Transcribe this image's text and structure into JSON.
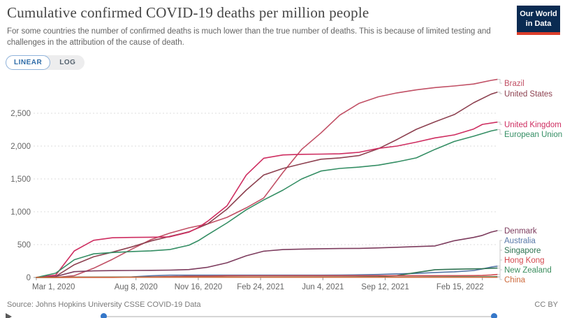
{
  "header": {
    "title": "Cumulative confirmed COVID-19 deaths per million people",
    "subtitle": "For some countries the number of confirmed deaths is much lower than the true number of deaths. This is because of limited testing and challenges in the attribution of the cause of death.",
    "logo_line1": "Our World",
    "logo_line2": "in Data"
  },
  "toolbar": {
    "linear_label": "LINEAR",
    "log_label": "LOG"
  },
  "footer": {
    "source": "Source: Johns Hopkins University CSSE COVID-19 Data",
    "license": "CC BY"
  },
  "colors": {
    "brand_navy": "#0A2B52",
    "brand_red": "#DC3E2B",
    "accent_blue": "#3577C9",
    "grid": "#DDDDDD",
    "axis": "#999999",
    "tick_text": "#666666",
    "connector": "#C9C9C9"
  },
  "chart_data": {
    "type": "line",
    "title": "Cumulative confirmed COVID-19 deaths per million people",
    "xlabel": "",
    "ylabel": "",
    "grid": "dashed-horizontal",
    "legend_position": "right-of-line-ends",
    "x_axis": {
      "unit": "date",
      "domain_days_from_mar1_2020": [
        0,
        740
      ],
      "ticks": [
        {
          "label": "Mar 1, 2020",
          "day": 0
        },
        {
          "label": "Aug 8, 2020",
          "day": 160
        },
        {
          "label": "Nov 16, 2020",
          "day": 260
        },
        {
          "label": "Feb 24, 2021",
          "day": 360
        },
        {
          "label": "Jun 4, 2021",
          "day": 460
        },
        {
          "label": "Sep 12, 2021",
          "day": 560
        },
        {
          "label": "Feb 15, 2022",
          "day": 716
        }
      ]
    },
    "y_axis": {
      "ylim": [
        0,
        3100
      ],
      "ticks": [
        {
          "v": 0,
          "label": "0"
        },
        {
          "v": 500,
          "label": "500"
        },
        {
          "v": 1000,
          "label": "1,000"
        },
        {
          "v": 1500,
          "label": "1,500"
        },
        {
          "v": 2000,
          "label": "2,000"
        },
        {
          "v": 2500,
          "label": "2,500"
        }
      ]
    },
    "series": [
      {
        "name": "Brazil",
        "color": "#C15065",
        "label_y": 22,
        "points": [
          [
            0,
            0
          ],
          [
            31,
            1
          ],
          [
            61,
            28
          ],
          [
            92,
            140
          ],
          [
            122,
            275
          ],
          [
            153,
            430
          ],
          [
            184,
            575
          ],
          [
            214,
            675
          ],
          [
            245,
            755
          ],
          [
            275,
            815
          ],
          [
            306,
            915
          ],
          [
            337,
            1060
          ],
          [
            365,
            1210
          ],
          [
            396,
            1600
          ],
          [
            426,
            1950
          ],
          [
            457,
            2200
          ],
          [
            487,
            2470
          ],
          [
            518,
            2650
          ],
          [
            549,
            2750
          ],
          [
            579,
            2810
          ],
          [
            610,
            2855
          ],
          [
            640,
            2890
          ],
          [
            671,
            2915
          ],
          [
            702,
            2945
          ],
          [
            730,
            3000
          ],
          [
            740,
            3015
          ]
        ]
      },
      {
        "name": "United States",
        "color": "#8D4150",
        "label_y": 37,
        "points": [
          [
            0,
            1
          ],
          [
            31,
            16
          ],
          [
            61,
            195
          ],
          [
            92,
            315
          ],
          [
            122,
            385
          ],
          [
            153,
            465
          ],
          [
            184,
            555
          ],
          [
            214,
            625
          ],
          [
            245,
            695
          ],
          [
            275,
            815
          ],
          [
            306,
            1040
          ],
          [
            337,
            1330
          ],
          [
            365,
            1560
          ],
          [
            396,
            1660
          ],
          [
            426,
            1730
          ],
          [
            457,
            1800
          ],
          [
            487,
            1820
          ],
          [
            518,
            1855
          ],
          [
            549,
            1960
          ],
          [
            579,
            2100
          ],
          [
            610,
            2255
          ],
          [
            640,
            2370
          ],
          [
            671,
            2480
          ],
          [
            702,
            2660
          ],
          [
            730,
            2790
          ],
          [
            740,
            2820
          ]
        ]
      },
      {
        "name": "United Kingdom",
        "color": "#CE2D60",
        "label_y": 81,
        "points": [
          [
            0,
            2
          ],
          [
            31,
            35
          ],
          [
            61,
            404
          ],
          [
            92,
            566
          ],
          [
            122,
            604
          ],
          [
            153,
            610
          ],
          [
            184,
            613
          ],
          [
            214,
            618
          ],
          [
            245,
            690
          ],
          [
            260,
            760
          ],
          [
            275,
            855
          ],
          [
            306,
            1090
          ],
          [
            337,
            1560
          ],
          [
            365,
            1815
          ],
          [
            396,
            1865
          ],
          [
            426,
            1875
          ],
          [
            457,
            1878
          ],
          [
            487,
            1882
          ],
          [
            518,
            1905
          ],
          [
            549,
            1965
          ],
          [
            579,
            2000
          ],
          [
            610,
            2060
          ],
          [
            640,
            2125
          ],
          [
            671,
            2170
          ],
          [
            702,
            2260
          ],
          [
            716,
            2330
          ],
          [
            740,
            2365
          ]
        ]
      },
      {
        "name": "European Union",
        "color": "#348E64",
        "label_y": 95,
        "points": [
          [
            0,
            0
          ],
          [
            31,
            65
          ],
          [
            61,
            270
          ],
          [
            92,
            360
          ],
          [
            122,
            380
          ],
          [
            153,
            395
          ],
          [
            184,
            405
          ],
          [
            214,
            425
          ],
          [
            245,
            490
          ],
          [
            260,
            560
          ],
          [
            275,
            650
          ],
          [
            306,
            830
          ],
          [
            337,
            1030
          ],
          [
            365,
            1180
          ],
          [
            396,
            1330
          ],
          [
            426,
            1500
          ],
          [
            457,
            1620
          ],
          [
            487,
            1660
          ],
          [
            518,
            1680
          ],
          [
            549,
            1710
          ],
          [
            579,
            1760
          ],
          [
            610,
            1820
          ],
          [
            640,
            1950
          ],
          [
            671,
            2070
          ],
          [
            702,
            2150
          ],
          [
            730,
            2230
          ],
          [
            740,
            2250
          ]
        ]
      },
      {
        "name": "Denmark",
        "color": "#7D3C5E",
        "label_y": 233,
        "points": [
          [
            0,
            0
          ],
          [
            31,
            15
          ],
          [
            61,
            88
          ],
          [
            92,
            100
          ],
          [
            122,
            104
          ],
          [
            153,
            106
          ],
          [
            184,
            108
          ],
          [
            214,
            112
          ],
          [
            245,
            120
          ],
          [
            275,
            155
          ],
          [
            306,
            223
          ],
          [
            337,
            330
          ],
          [
            365,
            400
          ],
          [
            396,
            425
          ],
          [
            426,
            432
          ],
          [
            457,
            437
          ],
          [
            487,
            440
          ],
          [
            518,
            443
          ],
          [
            549,
            450
          ],
          [
            579,
            460
          ],
          [
            610,
            470
          ],
          [
            640,
            480
          ],
          [
            671,
            560
          ],
          [
            702,
            610
          ],
          [
            716,
            640
          ],
          [
            730,
            690
          ],
          [
            740,
            713
          ]
        ]
      },
      {
        "name": "Australia",
        "color": "#5878A8",
        "label_y": 247,
        "points": [
          [
            0,
            0
          ],
          [
            31,
            1
          ],
          [
            61,
            4
          ],
          [
            92,
            4
          ],
          [
            122,
            4
          ],
          [
            153,
            8
          ],
          [
            184,
            26
          ],
          [
            214,
            35
          ],
          [
            245,
            35
          ],
          [
            275,
            35
          ],
          [
            306,
            35
          ],
          [
            337,
            35
          ],
          [
            365,
            35
          ],
          [
            396,
            35
          ],
          [
            426,
            35
          ],
          [
            457,
            35
          ],
          [
            487,
            36
          ],
          [
            518,
            40
          ],
          [
            549,
            46
          ],
          [
            579,
            55
          ],
          [
            610,
            62
          ],
          [
            640,
            75
          ],
          [
            671,
            86
          ],
          [
            702,
            105
          ],
          [
            716,
            130
          ],
          [
            730,
            158
          ],
          [
            740,
            172
          ]
        ]
      },
      {
        "name": "Singapore",
        "color": "#2F7352",
        "label_y": 261,
        "points": [
          [
            0,
            0
          ],
          [
            61,
            3
          ],
          [
            122,
            4
          ],
          [
            184,
            5
          ],
          [
            245,
            5
          ],
          [
            306,
            5
          ],
          [
            365,
            5
          ],
          [
            426,
            6
          ],
          [
            487,
            7
          ],
          [
            518,
            10
          ],
          [
            549,
            13
          ],
          [
            579,
            30
          ],
          [
            610,
            75
          ],
          [
            640,
            118
          ],
          [
            671,
            126
          ],
          [
            702,
            131
          ],
          [
            716,
            134
          ],
          [
            730,
            140
          ],
          [
            740,
            143
          ]
        ]
      },
      {
        "name": "Hong Kong",
        "color": "#D4494F",
        "label_y": 275,
        "points": [
          [
            0,
            0
          ],
          [
            61,
            1
          ],
          [
            122,
            1
          ],
          [
            184,
            9
          ],
          [
            214,
            14
          ],
          [
            245,
            19
          ],
          [
            275,
            20
          ],
          [
            306,
            25
          ],
          [
            337,
            27
          ],
          [
            365,
            27
          ],
          [
            426,
            28
          ],
          [
            487,
            28
          ],
          [
            549,
            28
          ],
          [
            610,
            28
          ],
          [
            671,
            28
          ],
          [
            702,
            29
          ],
          [
            716,
            31
          ],
          [
            730,
            38
          ],
          [
            740,
            46
          ]
        ]
      },
      {
        "name": "New Zealand",
        "color": "#3C8E5F",
        "label_y": 289,
        "points": [
          [
            0,
            0
          ],
          [
            61,
            4
          ],
          [
            122,
            4
          ],
          [
            184,
            5
          ],
          [
            245,
            5
          ],
          [
            306,
            5
          ],
          [
            365,
            5
          ],
          [
            426,
            5
          ],
          [
            487,
            5
          ],
          [
            549,
            5
          ],
          [
            610,
            6
          ],
          [
            640,
            9
          ],
          [
            671,
            10
          ],
          [
            702,
            10
          ],
          [
            716,
            11
          ],
          [
            730,
            12
          ],
          [
            740,
            13
          ]
        ]
      },
      {
        "name": "China",
        "color": "#CD6B3D",
        "label_y": 303,
        "points": [
          [
            0,
            2.3
          ],
          [
            31,
            2.3
          ],
          [
            61,
            3.2
          ],
          [
            122,
            3.2
          ],
          [
            184,
            3.3
          ],
          [
            245,
            3.3
          ],
          [
            306,
            3.3
          ],
          [
            365,
            3.4
          ],
          [
            426,
            3.4
          ],
          [
            487,
            3.4
          ],
          [
            549,
            3.5
          ],
          [
            610,
            3.5
          ],
          [
            671,
            3.5
          ],
          [
            702,
            3.6
          ],
          [
            740,
            3.6
          ]
        ]
      }
    ]
  }
}
